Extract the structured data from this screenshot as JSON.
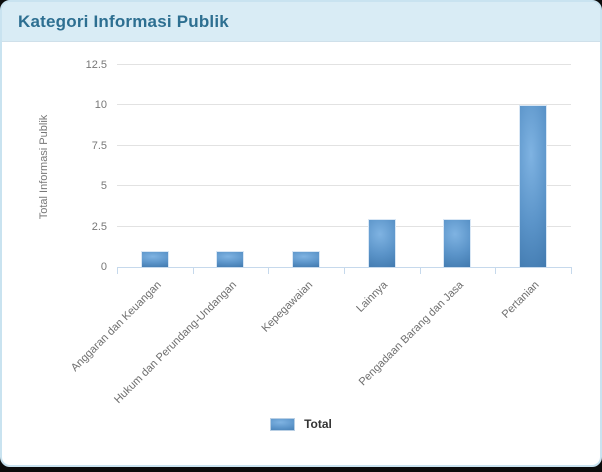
{
  "header": {
    "title": "Kategori Informasi Publik"
  },
  "chart_data": {
    "type": "bar",
    "title": "Kategori Informasi Publik",
    "categories": [
      "Anggaran dan Keuangan",
      "Hukum dan Perundang-Undangan",
      "Kepegawaian",
      "Lainnya",
      "Pengadaan Barang dan Jasa",
      "Pertanian"
    ],
    "series": [
      {
        "name": "Total",
        "values": [
          1,
          1,
          1,
          3,
          3,
          10
        ]
      }
    ],
    "xlabel": "",
    "ylabel": "Total Informasi Publik",
    "ylim": [
      0,
      12.5
    ],
    "yticks": [
      0,
      2.5,
      5,
      7.5,
      10,
      12.5
    ],
    "grid": true,
    "legend_position": "bottom"
  },
  "legend": {
    "items": [
      {
        "label": "Total",
        "swatch": "blue-gradient-bar"
      }
    ]
  },
  "colors": {
    "page_bg": "#0c0c0c",
    "card_border": "#c9e3f0",
    "header_bg": "#d9ecf5",
    "header_text": "#2d6f91",
    "grid_line": "#e2e2e2",
    "axis_line": "#c6d9ec",
    "tick_text": "#777777",
    "label_text": "#6e6e6e",
    "legend_text": "#333333",
    "bar_light": "#7fb3e2",
    "bar_mid": "#5b94c9",
    "bar_dark": "#3a72a7",
    "bar_border": "#d9e7f5"
  }
}
